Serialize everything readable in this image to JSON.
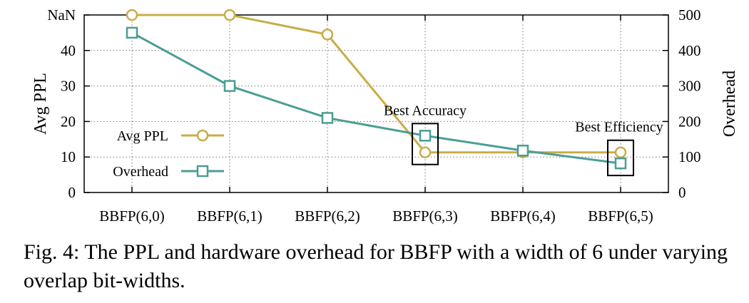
{
  "chart_data": {
    "type": "line",
    "categories": [
      "BBFP(6,0)",
      "BBFP(6,1)",
      "BBFP(6,2)",
      "BBFP(6,3)",
      "BBFP(6,4)",
      "BBFP(6,5)"
    ],
    "y_left": {
      "label": "Avg PPL",
      "ticks": [
        {
          "value": 0,
          "label": "0"
        },
        {
          "value": 10,
          "label": "10"
        },
        {
          "value": 20,
          "label": "20"
        },
        {
          "value": 30,
          "label": "30"
        },
        {
          "value": 40,
          "label": "40"
        },
        {
          "value": 50,
          "label": "NaN"
        }
      ],
      "range": [
        0,
        50
      ]
    },
    "y_right": {
      "label": "Overhead",
      "ticks": [
        {
          "value": 0,
          "label": "0"
        },
        {
          "value": 100,
          "label": "100"
        },
        {
          "value": 200,
          "label": "200"
        },
        {
          "value": 300,
          "label": "300"
        },
        {
          "value": 400,
          "label": "400"
        },
        {
          "value": 500,
          "label": "500"
        }
      ],
      "range": [
        0,
        500
      ]
    },
    "series": [
      {
        "name": "Avg PPL",
        "axis": "left",
        "marker": "circle",
        "color": "#c8ad48",
        "values": [
          50,
          50,
          44.5,
          11.3,
          11.3,
          11.3
        ]
      },
      {
        "name": "Overhead",
        "axis": "right",
        "marker": "square",
        "color": "#4a9e94",
        "values": [
          450,
          300,
          210,
          160,
          118,
          82
        ]
      }
    ],
    "annotations": [
      {
        "text": "Best Accuracy",
        "category_index": 3
      },
      {
        "text": "Best Efficiency",
        "category_index": 5
      }
    ],
    "grid": "dotted horizontal and vertical",
    "legend": "left"
  },
  "caption": "Fig. 4: The PPL and hardware overhead for BBFP with a width of 6 under varying overlap bit-widths."
}
